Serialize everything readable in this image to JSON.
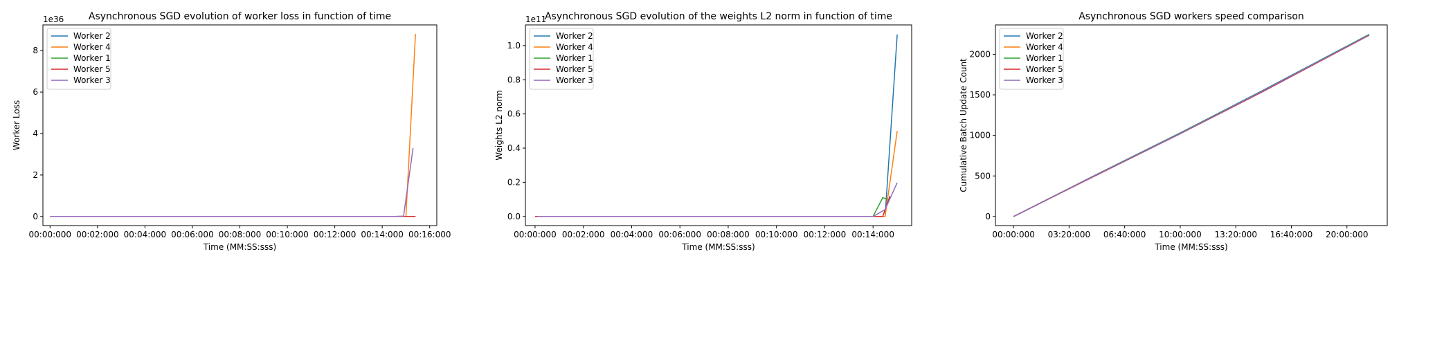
{
  "colors": {
    "Worker 2": "#1f77b4",
    "Worker 4": "#ff7f0e",
    "Worker 1": "#2ca02c",
    "Worker 5": "#d62728",
    "Worker 3": "#9467bd"
  },
  "chart_data": [
    {
      "type": "line",
      "title": "Asynchronous SGD evolution of worker loss in function of time",
      "xlabel": "Time (MM:SS:sss)",
      "ylabel": "Worker Loss",
      "y_offset_label": "1e36",
      "xlim": [
        -0.3,
        16.3
      ],
      "ylim": [
        -0.44,
        9.24
      ],
      "x_ticks": [
        0,
        2,
        4,
        6,
        8,
        10,
        12,
        14,
        16
      ],
      "x_tick_labels": [
        "00:00:000",
        "00:02:000",
        "00:04:000",
        "00:06:000",
        "00:08:000",
        "00:10:000",
        "00:12:000",
        "00:14:000",
        "00:16:000"
      ],
      "y_ticks": [
        0,
        2,
        4,
        6,
        8
      ],
      "y_tick_labels": [
        "0",
        "2",
        "4",
        "6",
        "8"
      ],
      "legend_loc": "upper left",
      "series": [
        {
          "name": "Worker 2",
          "x": [
            0,
            15.0,
            15.1,
            15.4
          ],
          "y": [
            0,
            0,
            0,
            0
          ]
        },
        {
          "name": "Worker 4",
          "x": [
            0,
            14.5,
            15.0,
            15.4
          ],
          "y": [
            0,
            0,
            0,
            8.8
          ]
        },
        {
          "name": "Worker 1",
          "x": [
            0,
            15.0,
            15.3
          ],
          "y": [
            0,
            0,
            0
          ]
        },
        {
          "name": "Worker 5",
          "x": [
            0.1,
            15.0,
            15.4
          ],
          "y": [
            0,
            0,
            0
          ]
        },
        {
          "name": "Worker 3",
          "x": [
            0,
            14.5,
            14.9,
            15.3
          ],
          "y": [
            0,
            0,
            0.02,
            3.3
          ]
        }
      ]
    },
    {
      "type": "line",
      "title": "Asynchronous SGD evolution of the weights L2 norm in function of time",
      "xlabel": "Time (MM:SS:sss)",
      "ylabel": "Weights L2 norm",
      "y_offset_label": "1e11",
      "xlim": [
        -0.4,
        15.6
      ],
      "ylim": [
        -0.0535,
        1.121
      ],
      "x_ticks": [
        0,
        2,
        4,
        6,
        8,
        10,
        12,
        14
      ],
      "x_tick_labels": [
        "00:00:000",
        "00:02:000",
        "00:04:000",
        "00:06:000",
        "00:08:000",
        "00:10:000",
        "00:12:000",
        "00:14:000"
      ],
      "y_ticks": [
        0,
        0.2,
        0.4,
        0.6,
        0.8,
        1.0
      ],
      "y_tick_labels": [
        "0.0",
        "0.2",
        "0.4",
        "0.6",
        "0.8",
        "1.0"
      ],
      "legend_loc": "upper left",
      "series": [
        {
          "name": "Worker 2",
          "x": [
            0,
            14.2,
            14.5,
            15.0
          ],
          "y": [
            0,
            0,
            0,
            1.065
          ]
        },
        {
          "name": "Worker 4",
          "x": [
            0,
            14.2,
            14.5,
            15.0
          ],
          "y": [
            0,
            0,
            0,
            0.5
          ]
        },
        {
          "name": "Worker 1",
          "x": [
            0,
            14.0,
            14.4,
            14.6
          ],
          "y": [
            0,
            0,
            0.11,
            0.1
          ]
        },
        {
          "name": "Worker 5",
          "x": [
            0,
            14.0,
            14.4,
            14.7
          ],
          "y": [
            0,
            0,
            0,
            0.12
          ]
        },
        {
          "name": "Worker 3",
          "x": [
            0.1,
            14.0,
            14.5,
            15.0
          ],
          "y": [
            0,
            0,
            0.04,
            0.198
          ]
        }
      ]
    },
    {
      "type": "line",
      "title": "Asynchronous SGD workers speed comparison",
      "xlabel": "Time (MM:SS:sss)",
      "ylabel": "Cumulative Batch Update Count",
      "xlim": [
        -65,
        1345
      ],
      "ylim": [
        -112,
        2362
      ],
      "x_ticks": [
        0,
        200,
        400,
        600,
        800,
        1000,
        1200
      ],
      "x_tick_labels": [
        "00:00:000",
        "03:20:000",
        "06:40:000",
        "10:00:000",
        "13:20:000",
        "16:40:000",
        "20:00:000"
      ],
      "y_ticks": [
        0,
        500,
        1000,
        1500,
        2000
      ],
      "y_tick_labels": [
        "0",
        "500",
        "1000",
        "1500",
        "2000"
      ],
      "legend_loc": "upper left",
      "series": [
        {
          "name": "Worker 2",
          "x": [
            0,
            300,
            600,
            900,
            1280
          ],
          "y": [
            0,
            520,
            1030,
            1560,
            2245
          ]
        },
        {
          "name": "Worker 4",
          "x": [
            0,
            300,
            600,
            900,
            1280
          ],
          "y": [
            0,
            515,
            1025,
            1550,
            2240
          ]
        },
        {
          "name": "Worker 1",
          "x": [
            0,
            300,
            600,
            900,
            1280
          ],
          "y": [
            0,
            518,
            1028,
            1555,
            2243
          ]
        },
        {
          "name": "Worker 5",
          "x": [
            0,
            300,
            600,
            900,
            1280
          ],
          "y": [
            0,
            512,
            1020,
            1545,
            2235
          ]
        },
        {
          "name": "Worker 3",
          "x": [
            0,
            300,
            600,
            900,
            1280
          ],
          "y": [
            0,
            516,
            1022,
            1552,
            2238
          ]
        }
      ]
    }
  ]
}
